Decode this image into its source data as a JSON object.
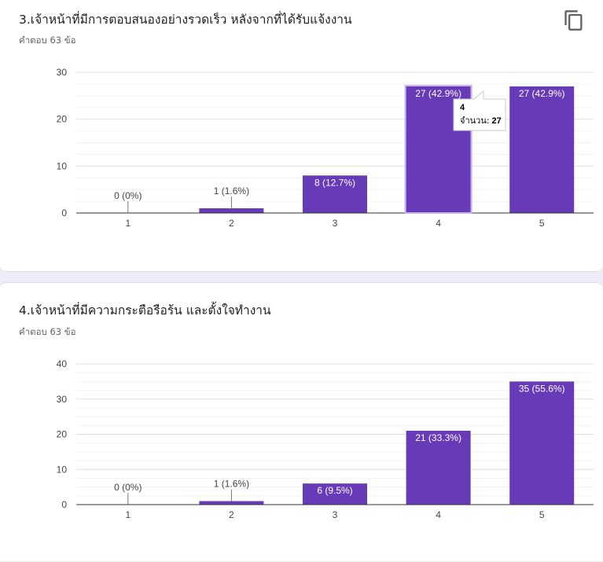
{
  "questions": [
    {
      "title": "3.เจ้าหน้าที่มีการตอบสนองอย่างรวดเร็ว หลังจากที่ได้รับแจ้งงาน",
      "response_count": "คำตอบ 63 ข้อ",
      "copy_icon": "copy-icon",
      "tooltip": {
        "category": "4",
        "label": "จำนวน:",
        "value": "27"
      }
    },
    {
      "title": "4.เจ้าหน้าที่มีความกระตือรือร้น และตั้งใจทำงาน",
      "response_count": "คำตอบ 63 ข้อ"
    }
  ],
  "colors": {
    "bar": "#673ab7",
    "bar_hover": "#7e57c2",
    "gridline": "#e0e0e0",
    "axis": "#333333",
    "card": "#ffffff",
    "background": "#f0ebf8"
  },
  "chart_data": [
    {
      "type": "bar",
      "title": "",
      "xlabel": "",
      "ylabel": "",
      "categories": [
        "1",
        "2",
        "3",
        "4",
        "5"
      ],
      "values": [
        0,
        1,
        8,
        27,
        27
      ],
      "data_labels": [
        "0 (0%)",
        "1 (1.6%)",
        "8 (12.7%)",
        "27 (42.9%)",
        "27 (42.9%)"
      ],
      "ylim": [
        0,
        30
      ],
      "yticks": [
        "0",
        "10",
        "20",
        "30"
      ],
      "grid": true,
      "highlighted_index": 3
    },
    {
      "type": "bar",
      "title": "",
      "xlabel": "",
      "ylabel": "",
      "categories": [
        "1",
        "2",
        "3",
        "4",
        "5"
      ],
      "values": [
        0,
        1,
        6,
        21,
        35
      ],
      "data_labels": [
        "0 (0%)",
        "1 (1.6%)",
        "6 (9.5%)",
        "21 (33.3%)",
        "35 (55.6%)"
      ],
      "ylim": [
        0,
        40
      ],
      "yticks": [
        "0",
        "10",
        "20",
        "30",
        "40"
      ],
      "grid": true
    }
  ]
}
